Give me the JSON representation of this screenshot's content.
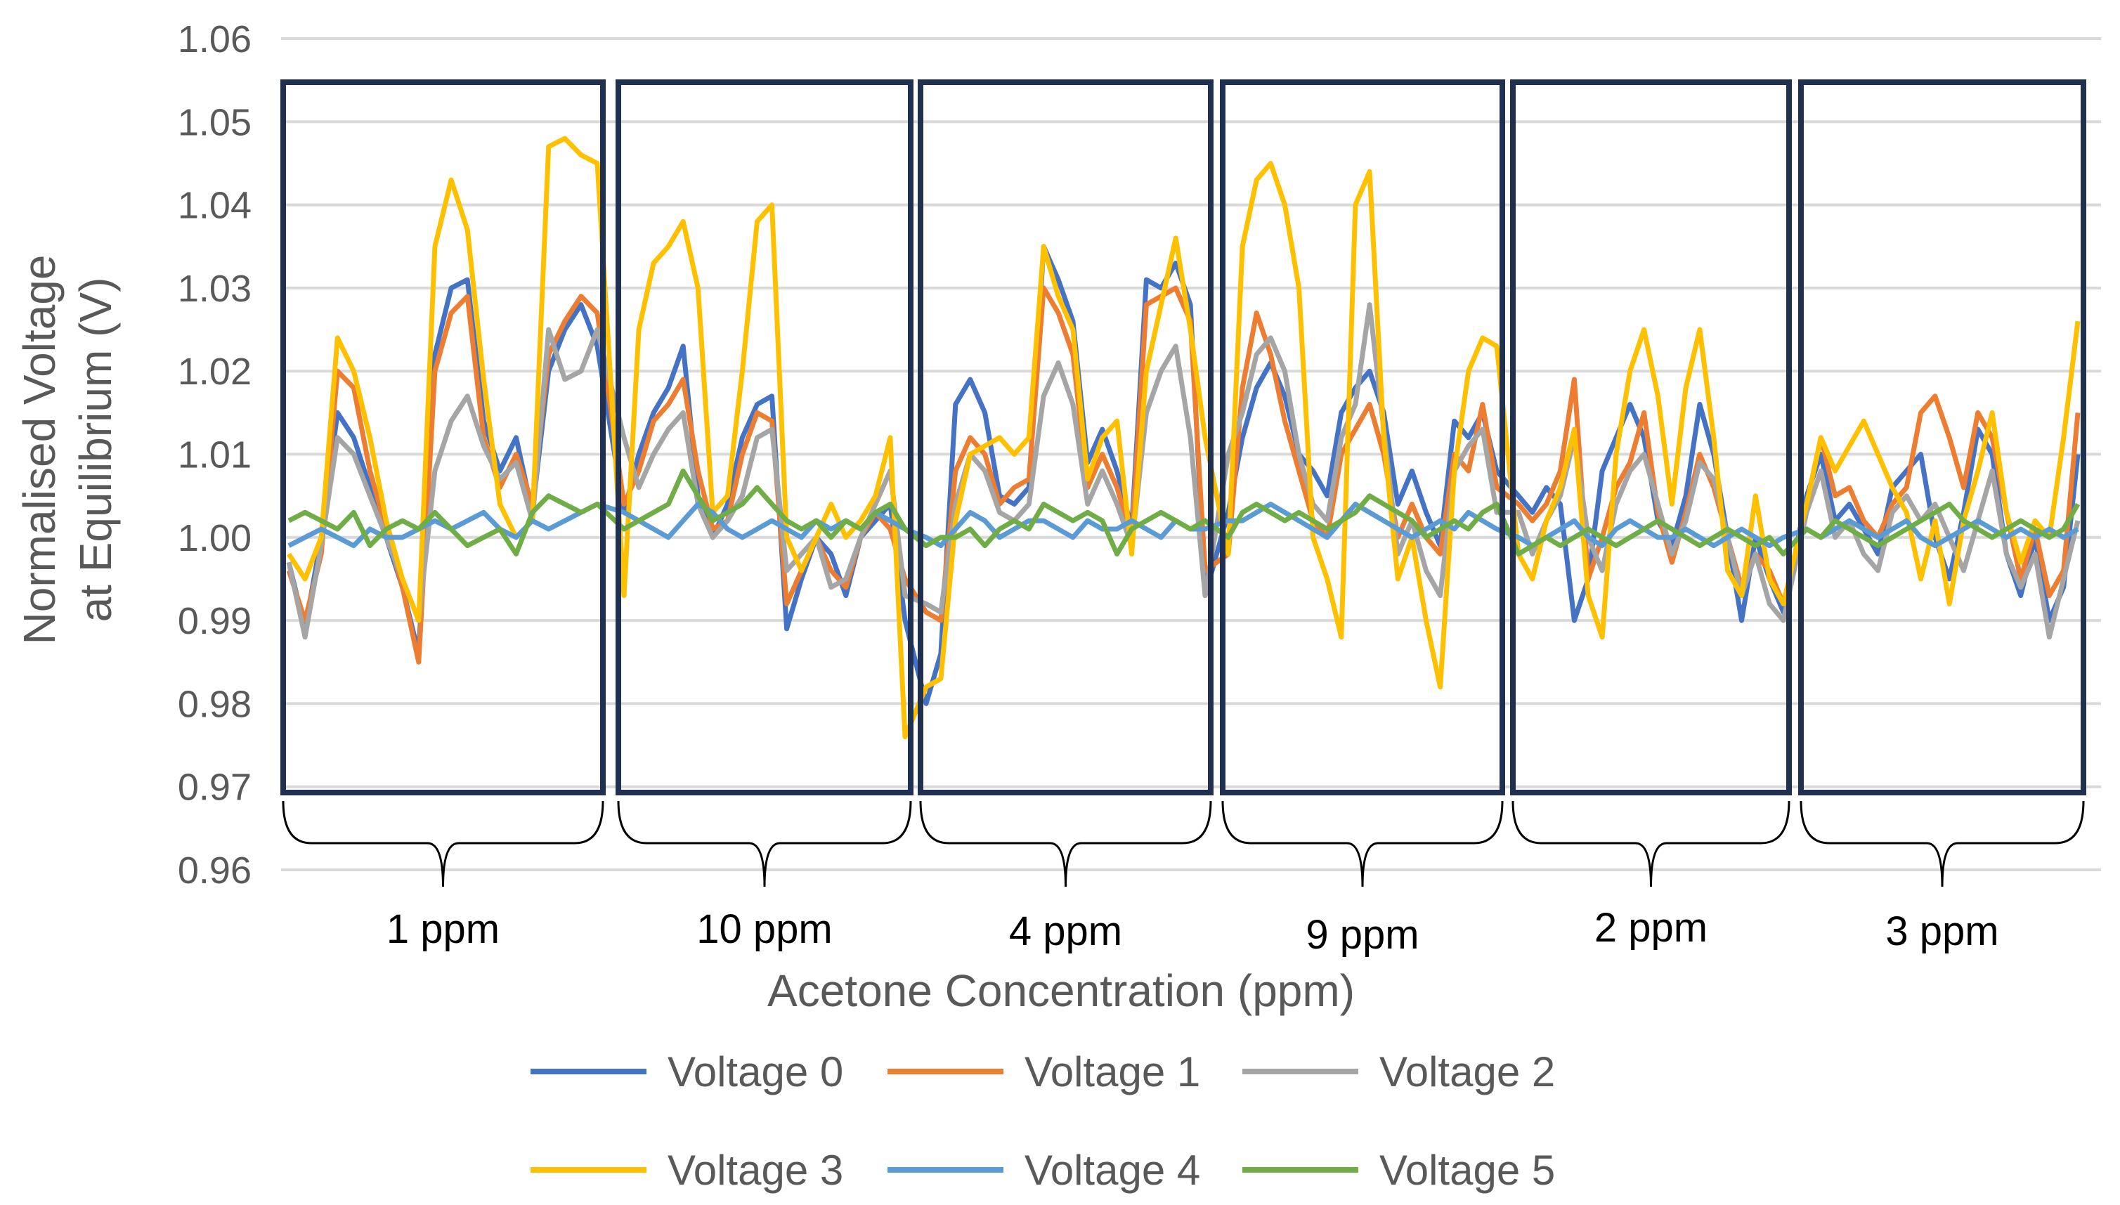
{
  "chart_data": {
    "type": "line",
    "xlabel": "Acetone Concentration (ppm)",
    "ylabel_lines": [
      "Normalised Voltage",
      "at Equilibrium (V)"
    ],
    "ylim": [
      0.96,
      1.06
    ],
    "yticks": [
      "0.96",
      "0.97",
      "0.98",
      "0.99",
      "1.00",
      "1.01",
      "1.02",
      "1.03",
      "1.04",
      "1.05",
      "1.06"
    ],
    "grid": true,
    "legend_position": "bottom",
    "groups": [
      "1 ppm",
      "10 ppm",
      "4 ppm",
      "9 ppm",
      "2 ppm",
      "3 ppm"
    ],
    "points_per_group": 20,
    "series": [
      {
        "name": "Voltage 0",
        "color": "#4472C4",
        "values": [
          0.997,
          0.989,
          1.0,
          1.015,
          1.012,
          1.006,
          1.0,
          0.994,
          0.986,
          1.022,
          1.03,
          1.031,
          1.014,
          1.008,
          1.012,
          1.003,
          1.02,
          1.025,
          1.028,
          1.023,
          1.003,
          1.01,
          1.015,
          1.018,
          1.023,
          1.005,
          1.0,
          1.004,
          1.012,
          1.016,
          1.017,
          0.989,
          0.995,
          1.0,
          0.998,
          0.993,
          1.0,
          1.002,
          1.004,
          0.99,
          0.98,
          0.986,
          1.016,
          1.019,
          1.015,
          1.005,
          1.004,
          1.006,
          1.035,
          1.031,
          1.026,
          1.009,
          1.013,
          1.008,
          1.001,
          1.031,
          1.03,
          1.033,
          1.028,
          0.993,
          1.003,
          1.012,
          1.018,
          1.021,
          1.017,
          1.01,
          1.008,
          1.005,
          1.015,
          1.018,
          1.02,
          1.015,
          1.004,
          1.008,
          1.003,
          0.999,
          1.014,
          1.012,
          1.015,
          1.008,
          1.005,
          1.003,
          1.006,
          1.004,
          0.99,
          0.995,
          1.008,
          1.012,
          1.016,
          1.012,
          1.002,
          0.999,
          1.005,
          1.016,
          1.01,
          1.0,
          0.99,
          1.0,
          0.995,
          0.991,
          1.005,
          1.01,
          1.002,
          1.004,
          1.001,
          0.998,
          1.006,
          1.008,
          1.01,
          1.0,
          0.995,
          1.003,
          1.013,
          1.01,
          0.998,
          0.993,
          1.0,
          0.99,
          0.994,
          1.01
        ]
      },
      {
        "name": "Voltage 1",
        "color": "#ED7D31",
        "values": [
          0.996,
          0.99,
          0.998,
          1.02,
          1.018,
          1.008,
          1.001,
          0.994,
          0.985,
          1.02,
          1.027,
          1.029,
          1.012,
          1.006,
          1.01,
          1.004,
          1.022,
          1.026,
          1.029,
          1.027,
          1.004,
          1.008,
          1.014,
          1.016,
          1.019,
          1.008,
          1.001,
          1.002,
          1.01,
          1.015,
          1.014,
          0.992,
          0.996,
          1.0,
          0.996,
          0.994,
          1.0,
          1.003,
          1.001,
          0.995,
          0.991,
          0.99,
          1.008,
          1.012,
          1.01,
          1.004,
          1.006,
          1.007,
          1.03,
          1.027,
          1.022,
          1.006,
          1.01,
          1.006,
          1.0,
          1.028,
          1.029,
          1.03,
          1.026,
          0.996,
          0.998,
          1.018,
          1.027,
          1.022,
          1.014,
          1.008,
          1.002,
          1.0,
          1.01,
          1.013,
          1.016,
          1.01,
          1.0,
          1.004,
          1.0,
          0.998,
          1.01,
          1.008,
          1.016,
          1.006,
          1.004,
          1.002,
          1.004,
          1.008,
          1.019,
          0.995,
          1.0,
          1.006,
          1.009,
          1.015,
          1.003,
          0.997,
          1.003,
          1.01,
          1.006,
          1.0,
          0.994,
          0.998,
          0.996,
          0.992,
          1.004,
          1.012,
          1.005,
          1.006,
          1.002,
          1.0,
          1.004,
          1.006,
          1.015,
          1.017,
          1.012,
          1.006,
          1.015,
          1.012,
          1.003,
          0.995,
          1.001,
          0.993,
          0.996,
          1.015
        ]
      },
      {
        "name": "Voltage 2",
        "color": "#A5A5A5",
        "values": [
          0.997,
          0.988,
          0.999,
          1.012,
          1.01,
          1.005,
          1.0,
          0.995,
          0.99,
          1.008,
          1.014,
          1.017,
          1.011,
          1.007,
          1.009,
          1.002,
          1.025,
          1.019,
          1.02,
          1.025,
          1.012,
          1.006,
          1.01,
          1.013,
          1.015,
          1.004,
          1.0,
          1.002,
          1.005,
          1.012,
          1.013,
          0.996,
          0.998,
          1.0,
          0.994,
          0.995,
          1.0,
          1.004,
          1.008,
          0.993,
          0.992,
          0.991,
          1.004,
          1.01,
          1.008,
          1.003,
          1.002,
          1.004,
          1.017,
          1.021,
          1.016,
          1.004,
          1.008,
          1.004,
          0.999,
          1.015,
          1.02,
          1.023,
          1.012,
          0.993,
          1.01,
          1.015,
          1.022,
          1.024,
          1.02,
          1.01,
          1.004,
          1.002,
          1.012,
          1.016,
          1.028,
          1.013,
          0.998,
          1.002,
          0.996,
          0.993,
          1.008,
          1.011,
          1.013,
          1.003,
          1.003,
          0.998,
          1.002,
          1.005,
          1.012,
          1.0,
          0.996,
          1.004,
          1.008,
          1.01,
          1.004,
          0.998,
          1.002,
          1.009,
          1.007,
          1.0,
          0.993,
          0.998,
          0.992,
          0.99,
          1.003,
          1.008,
          1.0,
          1.002,
          0.998,
          0.996,
          1.003,
          1.005,
          1.002,
          1.004,
          1.0,
          0.996,
          1.002,
          1.008,
          0.998,
          0.994,
          0.998,
          0.988,
          0.995,
          1.002
        ]
      },
      {
        "name": "Voltage 3",
        "color": "#FFC000",
        "values": [
          0.998,
          0.995,
          1.0,
          1.024,
          1.02,
          1.012,
          1.002,
          0.995,
          0.99,
          1.035,
          1.043,
          1.037,
          1.019,
          1.004,
          1.0,
          1.002,
          1.047,
          1.048,
          1.046,
          1.045,
          0.993,
          1.025,
          1.033,
          1.035,
          1.038,
          1.03,
          1.003,
          1.005,
          1.02,
          1.038,
          1.04,
          1.0,
          0.996,
          1.0,
          1.004,
          1.0,
          1.002,
          1.005,
          1.012,
          0.976,
          0.982,
          0.983,
          1.002,
          1.01,
          1.011,
          1.012,
          1.01,
          1.012,
          1.035,
          1.029,
          1.025,
          1.007,
          1.012,
          1.014,
          0.998,
          1.02,
          1.028,
          1.036,
          1.025,
          1.012,
          0.998,
          1.035,
          1.043,
          1.045,
          1.04,
          1.03,
          1.0,
          0.995,
          0.988,
          1.04,
          1.044,
          1.012,
          0.995,
          1.0,
          0.99,
          0.982,
          1.008,
          1.02,
          1.024,
          1.023,
          0.998,
          0.995,
          1.002,
          1.006,
          1.013,
          0.993,
          0.988,
          1.01,
          1.02,
          1.025,
          1.017,
          1.004,
          1.018,
          1.025,
          1.012,
          0.996,
          0.993,
          1.005,
          0.995,
          0.992,
          1.004,
          1.012,
          1.008,
          1.011,
          1.014,
          1.01,
          1.006,
          1.003,
          0.995,
          1.002,
          0.992,
          1.002,
          1.008,
          1.015,
          1.003,
          0.997,
          1.002,
          1.0,
          1.012,
          1.026
        ]
      },
      {
        "name": "Voltage 4",
        "color": "#5B9BD5",
        "values": [
          0.999,
          1.0,
          1.001,
          1.0,
          0.999,
          1.001,
          1.0,
          1.0,
          1.001,
          1.002,
          1.001,
          1.002,
          1.003,
          1.001,
          1.0,
          1.002,
          1.001,
          1.002,
          1.003,
          1.004,
          1.003,
          1.002,
          1.001,
          1.0,
          1.002,
          1.004,
          1.003,
          1.001,
          1.0,
          1.001,
          1.002,
          1.001,
          1.0,
          1.002,
          1.001,
          1.002,
          1.001,
          1.003,
          1.002,
          1.001,
          1.0,
          0.999,
          1.001,
          1.003,
          1.002,
          1.0,
          1.001,
          1.002,
          1.002,
          1.001,
          1.0,
          1.002,
          1.001,
          1.001,
          1.002,
          1.001,
          1.0,
          1.002,
          1.001,
          1.001,
          1.002,
          1.002,
          1.003,
          1.004,
          1.003,
          1.002,
          1.001,
          1.0,
          1.002,
          1.004,
          1.003,
          1.002,
          1.001,
          1.0,
          1.001,
          1.002,
          1.001,
          1.003,
          1.002,
          1.001,
          1.0,
          0.999,
          1.0,
          1.001,
          1.002,
          1.0,
          0.999,
          1.001,
          1.002,
          1.001,
          1.0,
          1.0,
          1.001,
          1.0,
          0.999,
          1.0,
          1.001,
          1.0,
          0.999,
          1.0,
          1.001,
          1.0,
          1.001,
          1.002,
          1.001,
          1.0,
          1.001,
          1.002,
          1.0,
          0.999,
          1.0,
          1.001,
          1.002,
          1.001,
          1.0,
          1.001,
          1.0,
          1.001,
          1.0,
          1.001
        ]
      },
      {
        "name": "Voltage 5",
        "color": "#70AD47",
        "values": [
          1.002,
          1.003,
          1.002,
          1.001,
          1.003,
          0.999,
          1.001,
          1.002,
          1.001,
          1.003,
          1.001,
          0.999,
          1.0,
          1.001,
          0.998,
          1.003,
          1.005,
          1.004,
          1.003,
          1.004,
          1.001,
          1.002,
          1.003,
          1.004,
          1.008,
          1.005,
          1.002,
          1.003,
          1.004,
          1.006,
          1.004,
          1.002,
          1.001,
          1.002,
          1.0,
          1.002,
          1.001,
          1.003,
          1.004,
          1.001,
          0.999,
          1.0,
          1.0,
          1.001,
          0.999,
          1.001,
          1.002,
          1.001,
          1.004,
          1.003,
          1.002,
          1.003,
          1.002,
          0.998,
          1.001,
          1.002,
          1.003,
          1.002,
          1.001,
          1.002,
          1.0,
          1.003,
          1.004,
          1.003,
          1.002,
          1.003,
          1.002,
          1.001,
          1.002,
          1.003,
          1.005,
          1.004,
          1.003,
          1.002,
          1.0,
          1.001,
          1.002,
          1.001,
          1.003,
          1.004,
          0.998,
          0.999,
          1.0,
          0.999,
          1.0,
          1.001,
          1.0,
          0.999,
          1.0,
          1.001,
          1.002,
          1.001,
          1.0,
          0.999,
          1.0,
          1.001,
          1.0,
          0.999,
          1.0,
          0.998,
          1.001,
          1.0,
          1.002,
          1.001,
          1.0,
          0.999,
          1.0,
          1.001,
          1.002,
          1.003,
          1.004,
          1.002,
          1.001,
          1.0,
          1.001,
          1.002,
          1.001,
          1.0,
          1.001,
          1.004
        ]
      }
    ]
  }
}
